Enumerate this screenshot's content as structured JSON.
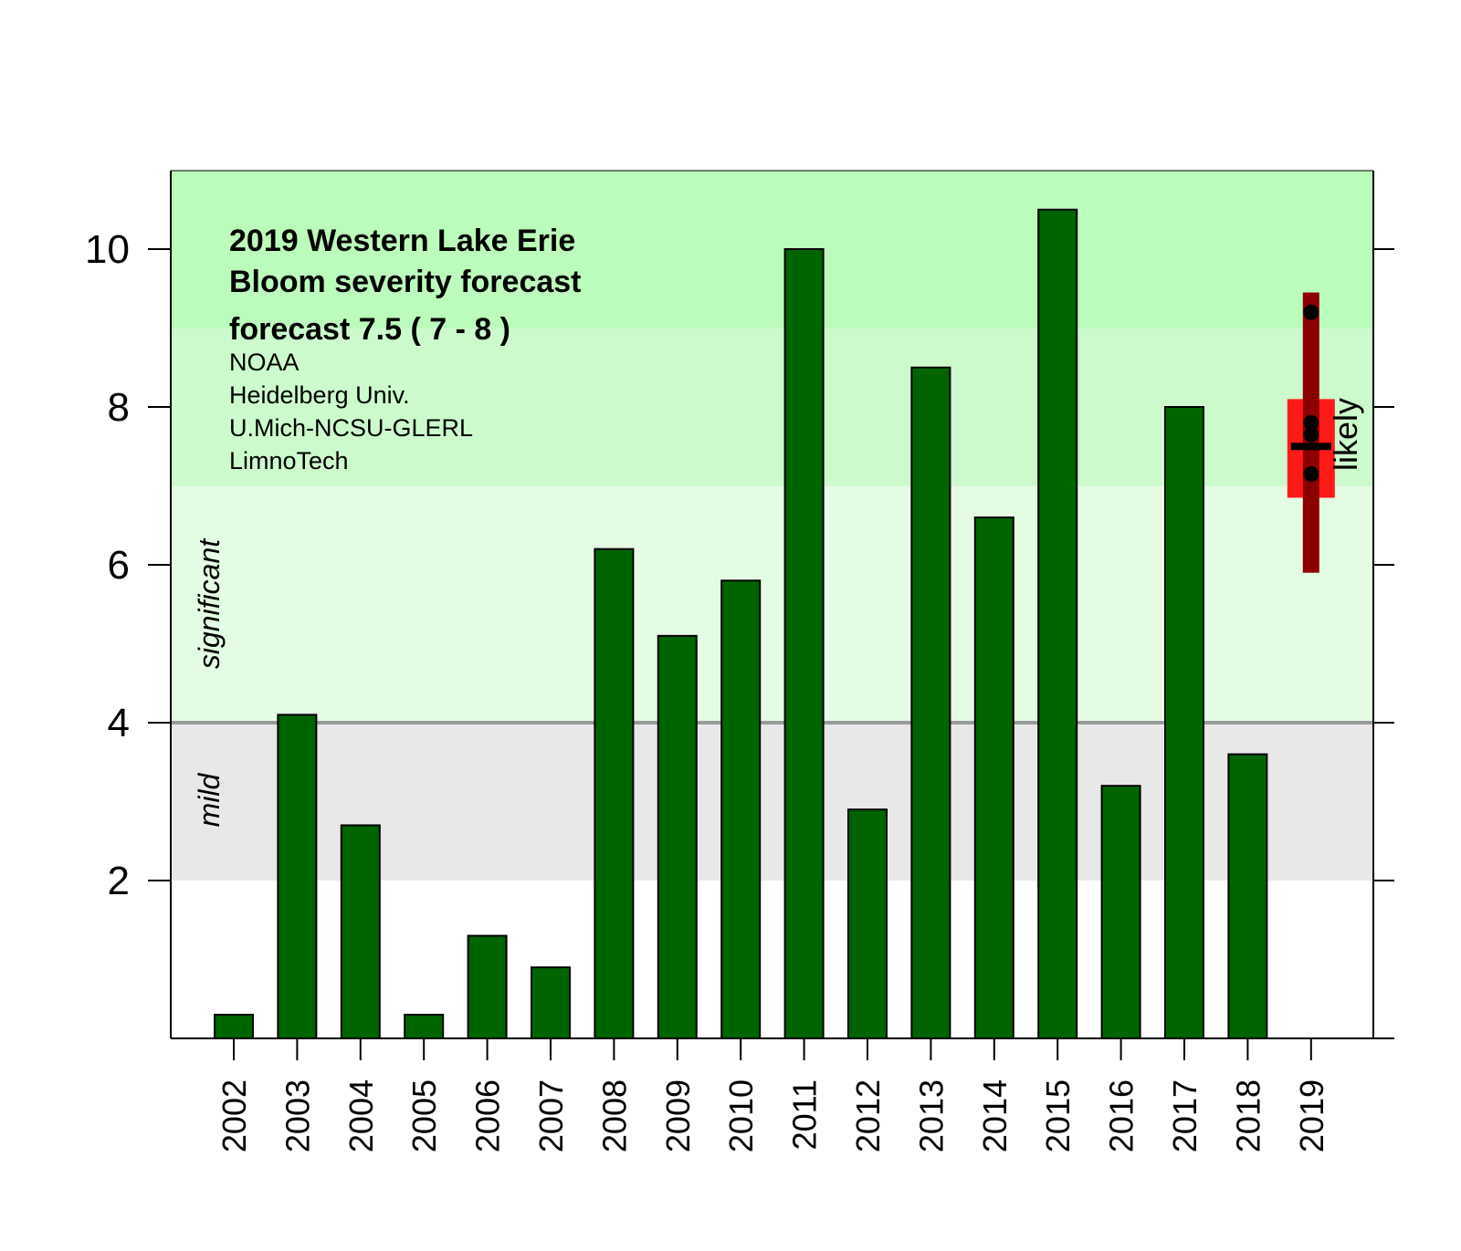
{
  "chart_data": {
    "type": "bar",
    "title_lines": [
      "2019  Western Lake Erie",
      "Bloom severity forecast",
      "forecast  7.5 ( 7 - 8 )"
    ],
    "credits": [
      "NOAA",
      "Heidelberg Univ.",
      "U.Mich-NCSU-GLERL",
      "LimnoTech"
    ],
    "categories": [
      "2002",
      "2003",
      "2004",
      "2005",
      "2006",
      "2007",
      "2008",
      "2009",
      "2010",
      "2011",
      "2012",
      "2013",
      "2014",
      "2015",
      "2016",
      "2017",
      "2018",
      "2019"
    ],
    "values": [
      0.3,
      4.1,
      2.7,
      0.3,
      1.3,
      0.9,
      6.2,
      5.1,
      5.8,
      10.0,
      2.9,
      8.5,
      6.6,
      10.5,
      3.2,
      8.0,
      3.6,
      null
    ],
    "ylim": [
      0,
      11
    ],
    "yticks": [
      "2",
      "4",
      "6",
      "8",
      "10"
    ],
    "bands": [
      {
        "label": "mild",
        "from": 2,
        "to": 4,
        "color": "#e8e8e8"
      },
      {
        "label": "significant",
        "from": 4,
        "to": 7,
        "color": "#e4fbe4"
      },
      {
        "label": "",
        "from": 7,
        "to": 9,
        "color": "#ccfacc"
      },
      {
        "label": "",
        "from": 9,
        "to": 11,
        "color": "#bbfbbb"
      }
    ],
    "threshold_line": 4,
    "forecast": {
      "category": "2019",
      "label": "likely",
      "whisker_low": 5.9,
      "whisker_high": 9.45,
      "box_low": 6.85,
      "box_high": 8.1,
      "median": 7.5,
      "points": [
        9.2,
        7.8,
        7.65,
        7.15
      ]
    },
    "colors": {
      "bar": "#006400",
      "whisker": "#8b0000",
      "box": "#ff1a1a"
    }
  }
}
